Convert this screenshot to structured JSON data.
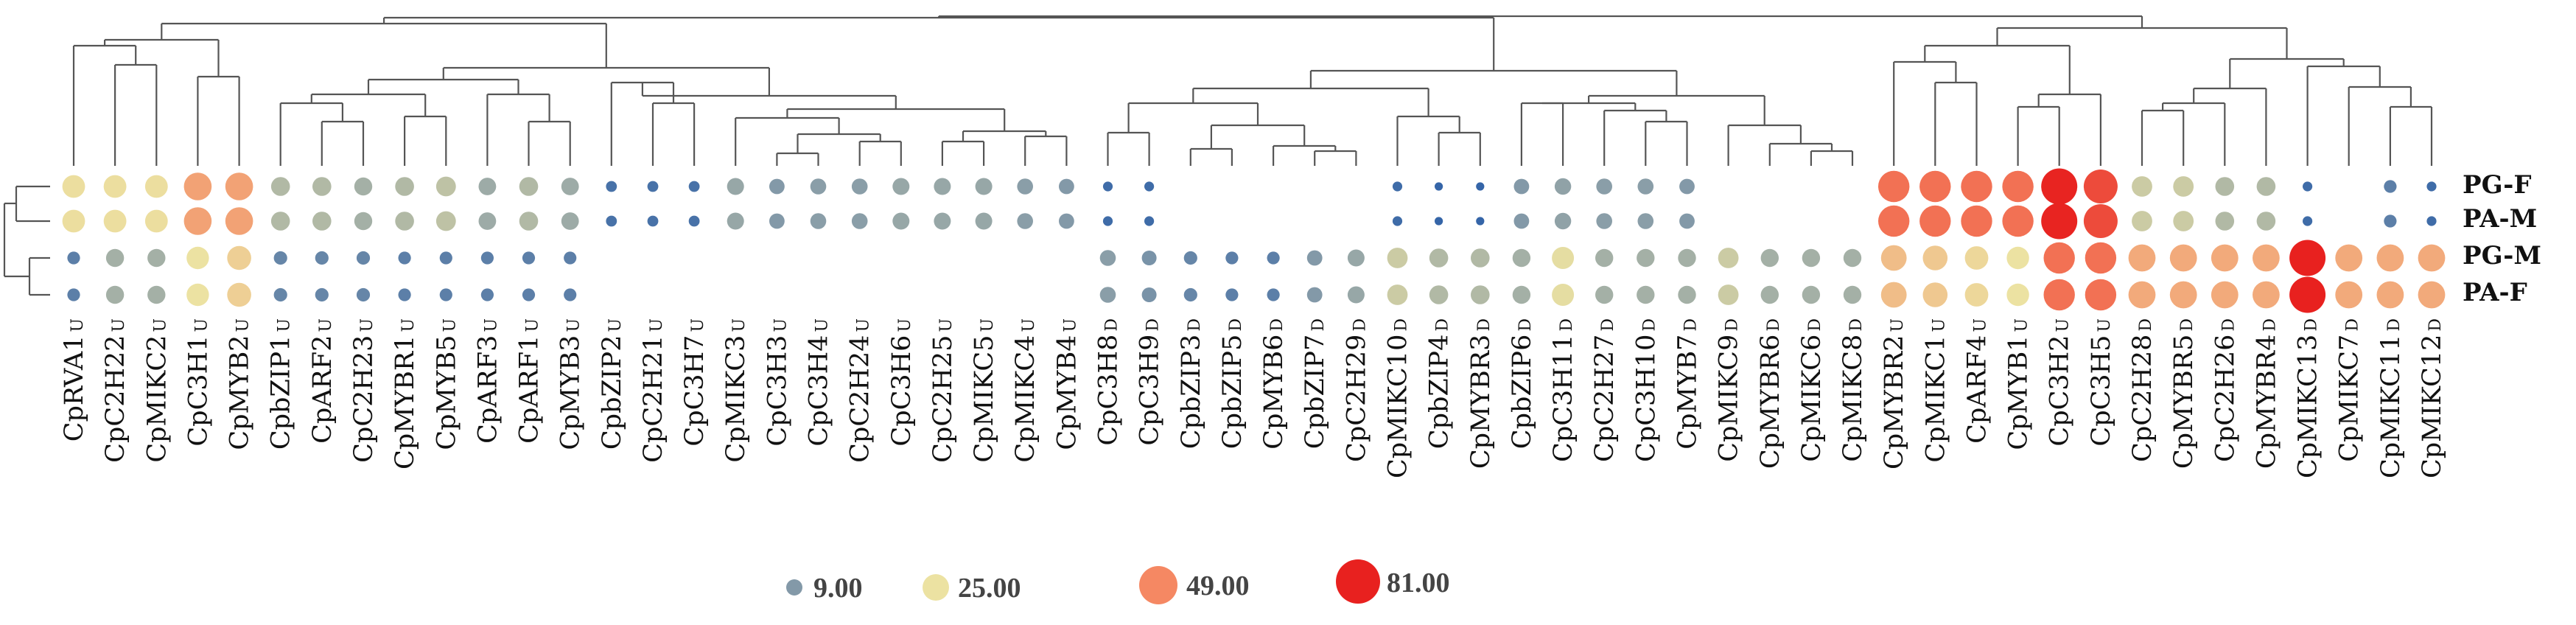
{
  "chart_data": {
    "type": "bubble-heatmap",
    "rows": [
      "PG-F",
      "PA-M",
      "PG-M",
      "PA-F"
    ],
    "columns": [
      {
        "gene": "CpRVA1",
        "tag": "U"
      },
      {
        "gene": "CpC2H22",
        "tag": "U"
      },
      {
        "gene": "CpMIKC2",
        "tag": "U"
      },
      {
        "gene": "CpC3H1",
        "tag": "U"
      },
      {
        "gene": "CpMYB2",
        "tag": "U"
      },
      {
        "gene": "CpbZIP1",
        "tag": "U"
      },
      {
        "gene": "CpARF2",
        "tag": "U"
      },
      {
        "gene": "CpC2H23",
        "tag": "U"
      },
      {
        "gene": "CpMYBR1",
        "tag": "U"
      },
      {
        "gene": "CpMYB5",
        "tag": "U"
      },
      {
        "gene": "CpARF3",
        "tag": "U"
      },
      {
        "gene": "CpARF1",
        "tag": "U"
      },
      {
        "gene": "CpMYB3",
        "tag": "U"
      },
      {
        "gene": "CpbZIP2",
        "tag": "U"
      },
      {
        "gene": "CpC2H21",
        "tag": "U"
      },
      {
        "gene": "CpC3H7",
        "tag": "U"
      },
      {
        "gene": "CpMIKC3",
        "tag": "U"
      },
      {
        "gene": "CpC3H3",
        "tag": "U"
      },
      {
        "gene": "CpC3H4",
        "tag": "U"
      },
      {
        "gene": "CpC2H24",
        "tag": "U"
      },
      {
        "gene": "CpC3H6",
        "tag": "U"
      },
      {
        "gene": "CpC2H25",
        "tag": "U"
      },
      {
        "gene": "CpMIKC5",
        "tag": "U"
      },
      {
        "gene": "CpMIKC4",
        "tag": "U"
      },
      {
        "gene": "CpMYB4",
        "tag": "U"
      },
      {
        "gene": "CpC3H8",
        "tag": "D"
      },
      {
        "gene": "CpC3H9",
        "tag": "D"
      },
      {
        "gene": "CpbZIP3",
        "tag": "D"
      },
      {
        "gene": "CpbZIP5",
        "tag": "D"
      },
      {
        "gene": "CpMYB6",
        "tag": "D"
      },
      {
        "gene": "CpbZIP7",
        "tag": "D"
      },
      {
        "gene": "CpC2H29",
        "tag": "D"
      },
      {
        "gene": "CpMIKC10",
        "tag": "D"
      },
      {
        "gene": "CpbZIP4",
        "tag": "D"
      },
      {
        "gene": "CpMYBR3",
        "tag": "D"
      },
      {
        "gene": "CpbZIP6",
        "tag": "D"
      },
      {
        "gene": "CpC3H11",
        "tag": "D"
      },
      {
        "gene": "CpC2H27",
        "tag": "D"
      },
      {
        "gene": "CpC3H10",
        "tag": "D"
      },
      {
        "gene": "CpMYB7",
        "tag": "D"
      },
      {
        "gene": "CpMIKC9",
        "tag": "D"
      },
      {
        "gene": "CpMYBR6",
        "tag": "D"
      },
      {
        "gene": "CpMIKC6",
        "tag": "D"
      },
      {
        "gene": "CpMIKC8",
        "tag": "D"
      },
      {
        "gene": "CpMYBR2",
        "tag": "U"
      },
      {
        "gene": "CpMIKC1",
        "tag": "U"
      },
      {
        "gene": "CpARF4",
        "tag": "U"
      },
      {
        "gene": "CpMYB1",
        "tag": "U"
      },
      {
        "gene": "CpC3H2",
        "tag": "U"
      },
      {
        "gene": "CpC3H5",
        "tag": "U"
      },
      {
        "gene": "CpC2H28",
        "tag": "D"
      },
      {
        "gene": "CpMYBR5",
        "tag": "D"
      },
      {
        "gene": "CpC2H26",
        "tag": "D"
      },
      {
        "gene": "CpMYBR4",
        "tag": "D"
      },
      {
        "gene": "CpMIKC13",
        "tag": "D"
      },
      {
        "gene": "CpMIKC7",
        "tag": "D"
      },
      {
        "gene": "CpMIKC11",
        "tag": "D"
      },
      {
        "gene": "CpMIKC12",
        "tag": "D"
      }
    ],
    "values": [
      [
        26,
        26,
        26,
        42,
        42,
        16,
        16,
        14,
        16,
        18,
        13,
        16,
        13,
        3,
        3,
        3,
        12,
        9,
        10,
        10,
        12,
        12,
        12,
        10,
        9,
        2,
        2,
        0,
        0,
        0,
        0,
        0,
        2,
        1,
        1,
        9,
        11,
        10,
        10,
        9,
        0,
        0,
        0,
        0,
        56,
        56,
        56,
        56,
        80,
        68,
        20,
        20,
        16,
        16,
        2,
        0,
        5,
        2
      ],
      [
        26,
        26,
        26,
        42,
        42,
        16,
        16,
        14,
        16,
        18,
        13,
        16,
        13,
        3,
        3,
        3,
        12,
        9,
        10,
        10,
        12,
        12,
        12,
        10,
        9,
        2,
        2,
        0,
        0,
        0,
        0,
        0,
        2,
        1,
        1,
        9,
        11,
        10,
        10,
        9,
        0,
        0,
        0,
        0,
        56,
        56,
        56,
        56,
        80,
        68,
        20,
        20,
        16,
        16,
        2,
        0,
        5,
        2
      ],
      [
        5,
        14,
        14,
        25,
        30,
        6,
        6,
        6,
        5,
        5,
        5,
        5,
        5,
        0,
        0,
        0,
        0,
        0,
        0,
        0,
        0,
        0,
        0,
        0,
        0,
        10,
        8,
        6,
        5,
        5,
        9,
        12,
        20,
        16,
        16,
        14,
        24,
        14,
        14,
        14,
        20,
        14,
        14,
        14,
        35,
        32,
        28,
        25,
        56,
        56,
        40,
        40,
        40,
        40,
        81,
        40,
        40,
        40
      ],
      [
        5,
        14,
        14,
        25,
        30,
        6,
        6,
        6,
        5,
        5,
        5,
        5,
        5,
        0,
        0,
        0,
        0,
        0,
        0,
        0,
        0,
        0,
        0,
        0,
        0,
        10,
        8,
        6,
        5,
        5,
        9,
        12,
        20,
        16,
        16,
        14,
        24,
        14,
        14,
        14,
        20,
        14,
        14,
        14,
        35,
        32,
        28,
        25,
        56,
        56,
        40,
        40,
        40,
        40,
        81,
        40,
        40,
        40
      ]
    ],
    "legend": {
      "values": [
        "9.00",
        "25.00",
        "49.00",
        "81.00"
      ],
      "colors": [
        "#8399a8",
        "#ece2a2",
        "#f58863",
        "#e8211f"
      ]
    },
    "colorscale": [
      "#2b5fa8",
      "#8399a8",
      "#ece2a2",
      "#f58863",
      "#e8211f"
    ],
    "column_dendrogram": true,
    "row_dendrogram": true
  }
}
